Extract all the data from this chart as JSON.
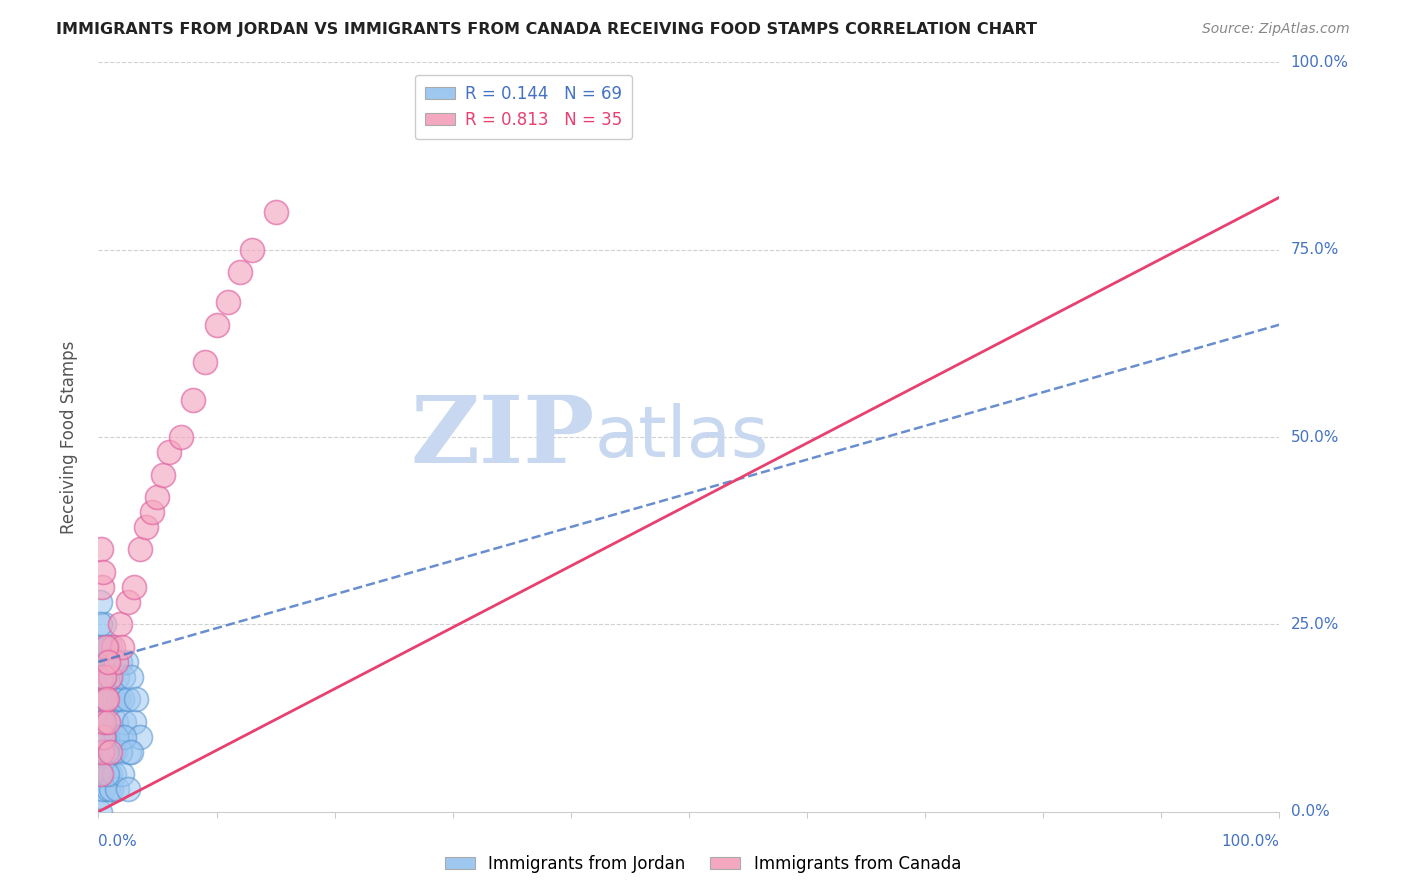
{
  "title": "IMMIGRANTS FROM JORDAN VS IMMIGRANTS FROM CANADA RECEIVING FOOD STAMPS CORRELATION CHART",
  "source": "Source: ZipAtlas.com",
  "ylabel": "Receiving Food Stamps",
  "jordan_R": 0.144,
  "jordan_N": 69,
  "canada_R": 0.813,
  "canada_N": 35,
  "jordan_color": "#9EC8F0",
  "canada_color": "#F4A8C0",
  "jordan_line_color": "#4472C4",
  "canada_line_color": "#E84070",
  "jordan_edge_color": "#5090D0",
  "canada_edge_color": "#E060A0",
  "background_color": "#FFFFFF",
  "grid_color": "#CCCCCC",
  "tick_color": "#4472C4",
  "legend_jordan_color": "#4472C4",
  "legend_canada_color": "#E84070",
  "watermark_color": "#C8D8F0",
  "ytick_positions": [
    0.0,
    0.25,
    0.5,
    0.75,
    1.0
  ],
  "ytick_labels": [
    "0.0%",
    "25.0%",
    "50.0%",
    "75.0%",
    "100.0%"
  ],
  "jordan_line_intercept": 0.2,
  "jordan_line_slope": 0.45,
  "canada_line_intercept": 0.0,
  "canada_line_slope": 0.82,
  "jordan_scatter_x": [
    0.001,
    0.002,
    0.002,
    0.003,
    0.003,
    0.003,
    0.004,
    0.004,
    0.005,
    0.005,
    0.006,
    0.006,
    0.007,
    0.007,
    0.008,
    0.008,
    0.009,
    0.009,
    0.01,
    0.01,
    0.011,
    0.012,
    0.012,
    0.013,
    0.014,
    0.015,
    0.016,
    0.017,
    0.018,
    0.019,
    0.02,
    0.021,
    0.022,
    0.023,
    0.025,
    0.026,
    0.028,
    0.03,
    0.032,
    0.035,
    0.001,
    0.002,
    0.003,
    0.004,
    0.005,
    0.006,
    0.007,
    0.008,
    0.009,
    0.01,
    0.011,
    0.012,
    0.013,
    0.015,
    0.016,
    0.018,
    0.02,
    0.022,
    0.025,
    0.028,
    0.001,
    0.001,
    0.002,
    0.002,
    0.003,
    0.004,
    0.005,
    0.006,
    0.007
  ],
  "jordan_scatter_y": [
    0.05,
    0.08,
    0.2,
    0.15,
    0.1,
    0.22,
    0.18,
    0.12,
    0.25,
    0.08,
    0.2,
    0.15,
    0.22,
    0.1,
    0.18,
    0.12,
    0.2,
    0.08,
    0.22,
    0.15,
    0.18,
    0.2,
    0.1,
    0.15,
    0.08,
    0.12,
    0.18,
    0.15,
    0.2,
    0.1,
    0.15,
    0.18,
    0.12,
    0.2,
    0.15,
    0.08,
    0.18,
    0.12,
    0.15,
    0.1,
    0.0,
    0.02,
    0.05,
    0.03,
    0.08,
    0.05,
    0.1,
    0.03,
    0.08,
    0.05,
    0.03,
    0.08,
    0.05,
    0.1,
    0.03,
    0.08,
    0.05,
    0.1,
    0.03,
    0.08,
    0.28,
    0.25,
    0.22,
    0.18,
    0.15,
    0.12,
    0.1,
    0.08,
    0.05
  ],
  "canada_scatter_x": [
    0.002,
    0.003,
    0.004,
    0.005,
    0.006,
    0.008,
    0.01,
    0.012,
    0.015,
    0.018,
    0.02,
    0.025,
    0.03,
    0.035,
    0.04,
    0.045,
    0.05,
    0.055,
    0.06,
    0.07,
    0.08,
    0.09,
    0.1,
    0.11,
    0.12,
    0.13,
    0.15,
    0.002,
    0.003,
    0.004,
    0.005,
    0.006,
    0.007,
    0.008,
    0.01
  ],
  "canada_scatter_y": [
    0.05,
    0.08,
    0.1,
    0.12,
    0.15,
    0.12,
    0.18,
    0.22,
    0.2,
    0.25,
    0.22,
    0.28,
    0.3,
    0.35,
    0.38,
    0.4,
    0.42,
    0.45,
    0.48,
    0.5,
    0.55,
    0.6,
    0.65,
    0.68,
    0.72,
    0.75,
    0.8,
    0.35,
    0.3,
    0.32,
    0.18,
    0.22,
    0.15,
    0.2,
    0.08
  ]
}
